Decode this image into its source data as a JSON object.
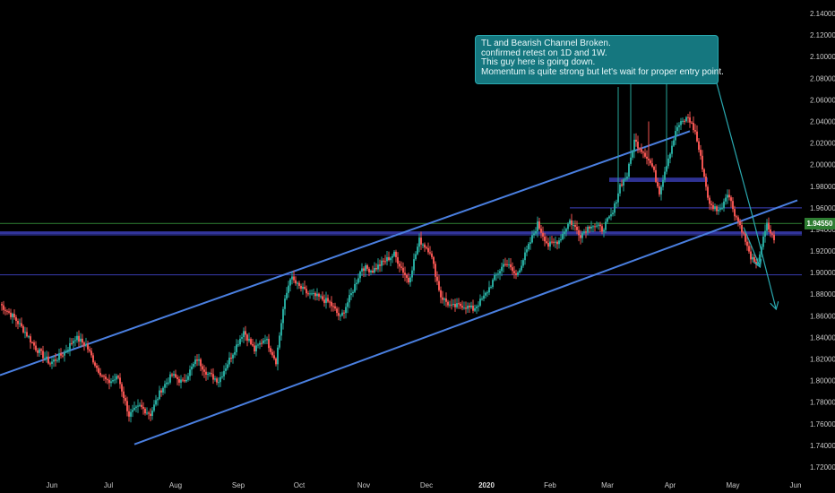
{
  "chart_data": {
    "type": "candlestick",
    "title": "",
    "xlabel": "",
    "ylabel": "",
    "ylim": [
      1.715,
      2.145
    ],
    "y_ticks": [
      "2.14000",
      "2.12000",
      "2.10000",
      "2.08000",
      "2.06000",
      "2.04000",
      "2.02000",
      "2.00000",
      "1.98000",
      "1.96000",
      "1.94000",
      "1.92000",
      "1.90000",
      "1.88000",
      "1.86000",
      "1.84000",
      "1.82000",
      "1.80000",
      "1.78000",
      "1.76000",
      "1.74000",
      "1.72000"
    ],
    "x_ticks": [
      {
        "label": "Jun",
        "bold": false
      },
      {
        "label": "Jul",
        "bold": false
      },
      {
        "label": "Aug",
        "bold": false
      },
      {
        "label": "Sep",
        "bold": false
      },
      {
        "label": "Oct",
        "bold": false
      },
      {
        "label": "Nov",
        "bold": false
      },
      {
        "label": "Dec",
        "bold": false
      },
      {
        "label": "2020",
        "bold": true
      },
      {
        "label": "Feb",
        "bold": false
      },
      {
        "label": "Mar",
        "bold": false
      },
      {
        "label": "Apr",
        "bold": false
      },
      {
        "label": "May",
        "bold": false
      },
      {
        "label": "Jun",
        "bold": false
      }
    ],
    "current_price": "1.94550",
    "close_path": [
      [
        0,
        1.871
      ],
      [
        8,
        1.858
      ],
      [
        14,
        1.845
      ],
      [
        20,
        1.83
      ],
      [
        28,
        1.816
      ],
      [
        36,
        1.826
      ],
      [
        42,
        1.84
      ],
      [
        48,
        1.833
      ],
      [
        54,
        1.812
      ],
      [
        60,
        1.798
      ],
      [
        66,
        1.803
      ],
      [
        72,
        1.768
      ],
      [
        78,
        1.776
      ],
      [
        84,
        1.769
      ],
      [
        90,
        1.792
      ],
      [
        96,
        1.805
      ],
      [
        102,
        1.798
      ],
      [
        110,
        1.82
      ],
      [
        116,
        1.806
      ],
      [
        122,
        1.8
      ],
      [
        130,
        1.826
      ],
      [
        136,
        1.846
      ],
      [
        142,
        1.828
      ],
      [
        148,
        1.84
      ],
      [
        154,
        1.818
      ],
      [
        158,
        1.866
      ],
      [
        162,
        1.896
      ],
      [
        166,
        1.888
      ],
      [
        172,
        1.88
      ],
      [
        178,
        1.877
      ],
      [
        184,
        1.872
      ],
      [
        190,
        1.858
      ],
      [
        196,
        1.88
      ],
      [
        202,
        1.905
      ],
      [
        208,
        1.902
      ],
      [
        214,
        1.91
      ],
      [
        220,
        1.917
      ],
      [
        228,
        1.892
      ],
      [
        234,
        1.93
      ],
      [
        240,
        1.92
      ],
      [
        246,
        1.878
      ],
      [
        252,
        1.868
      ],
      [
        258,
        1.87
      ],
      [
        264,
        1.866
      ],
      [
        270,
        1.877
      ],
      [
        276,
        1.895
      ],
      [
        282,
        1.91
      ],
      [
        288,
        1.897
      ],
      [
        294,
        1.92
      ],
      [
        300,
        1.945
      ],
      [
        306,
        1.925
      ],
      [
        312,
        1.93
      ],
      [
        318,
        1.948
      ],
      [
        324,
        1.935
      ],
      [
        330,
        1.945
      ],
      [
        336,
        1.94
      ],
      [
        342,
        1.955
      ],
      [
        346,
        1.981
      ],
      [
        350,
        1.99
      ],
      [
        354,
        2.022
      ],
      [
        360,
        2.01
      ],
      [
        364,
        1.998
      ],
      [
        368,
        1.975
      ],
      [
        372,
        2.001
      ],
      [
        378,
        2.035
      ],
      [
        384,
        2.044
      ],
      [
        388,
        2.03
      ],
      [
        392,
        1.998
      ],
      [
        396,
        1.962
      ],
      [
        402,
        1.958
      ],
      [
        406,
        1.975
      ],
      [
        410,
        1.955
      ],
      [
        414,
        1.94
      ],
      [
        418,
        1.918
      ],
      [
        422,
        1.905
      ],
      [
        428,
        1.944
      ],
      [
        432,
        1.93
      ]
    ],
    "channel_upper": {
      "from": {
        "x": 0,
        "y": 1.805
      },
      "to": {
        "x": 385,
        "y": 2.031
      }
    },
    "channel_lower": {
      "from": {
        "x": 75,
        "y": 1.741
      },
      "to": {
        "x": 445,
        "y": 1.967
      }
    },
    "horizontal_levels": [
      1.9455,
      1.937,
      1.935,
      1.898,
      1.96
    ],
    "zone_box": {
      "x_from": 340,
      "x_to": 395,
      "y_from": 1.984,
      "y_to": 1.988
    },
    "annotation_arrows": [
      {
        "from": {
          "x": 420,
          "y": 1.952
        },
        "to": {
          "x": 433,
          "y": 1.867
        }
      },
      {
        "from": {
          "x": 415,
          "y": 1.942
        },
        "to": {
          "x": 424,
          "y": 1.906
        }
      }
    ]
  },
  "annotation": {
    "lines": [
      "TL and Bearish Channel Broken.",
      "confirmed retest on 1D and 1W.",
      "This guy here is going down.",
      "Momentum is quite strong but let's wait for proper entry point."
    ]
  },
  "colors": {
    "up": "#26a69a",
    "down": "#ef5350",
    "channel": "#4a7fe0",
    "level": "#3b3fb8",
    "arrow": "#2aa9b0",
    "price_tag": "#2e7d32"
  }
}
